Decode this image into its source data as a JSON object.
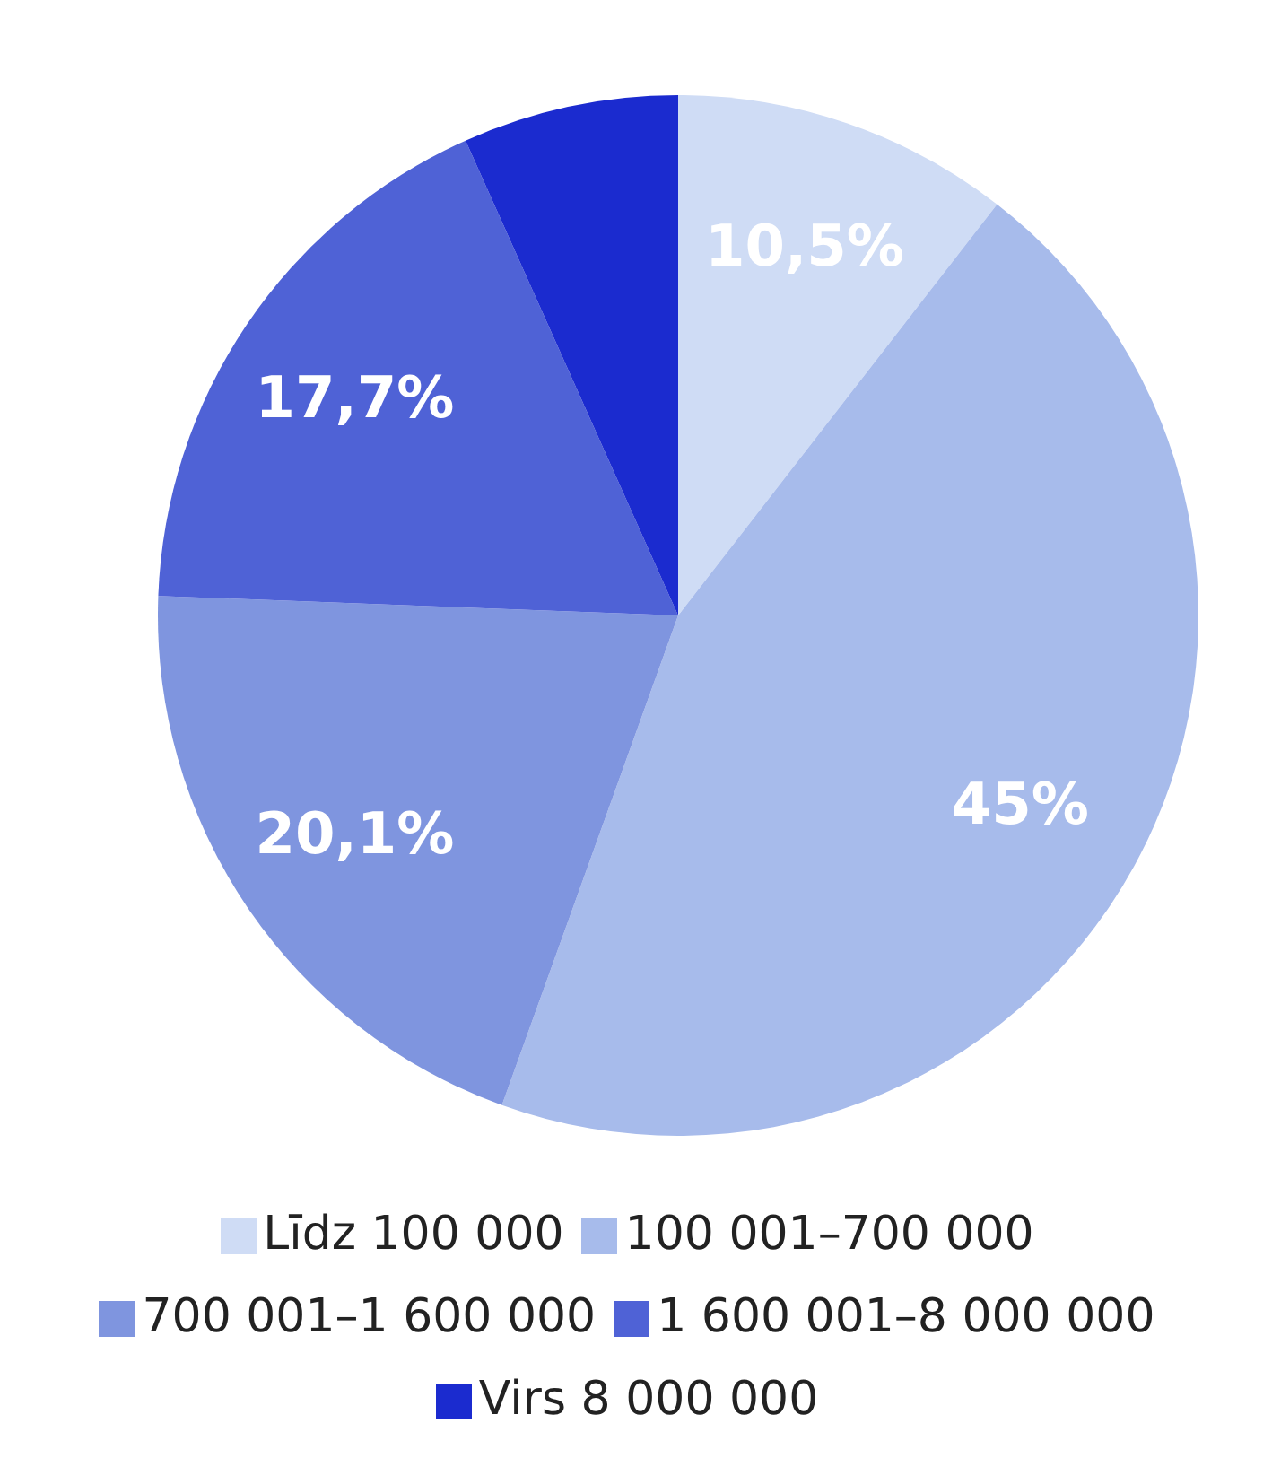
{
  "chart_data": {
    "type": "pie",
    "categories": [
      "Līdz 100 000",
      "100 001–700 000",
      "700 001–1 600 000",
      "1 600 001–8 000 000",
      "Virs 8 000 000"
    ],
    "values": [
      10.5,
      45,
      20.1,
      17.7,
      6.7
    ],
    "colors": [
      "#cfdcf5",
      "#a7bbeb",
      "#7f95df",
      "#4f62d6",
      "#1b2bcf"
    ],
    "value_labels": [
      "10,5%",
      "45%",
      "20,1%",
      "17,7%",
      null
    ],
    "legend": "bottom"
  }
}
